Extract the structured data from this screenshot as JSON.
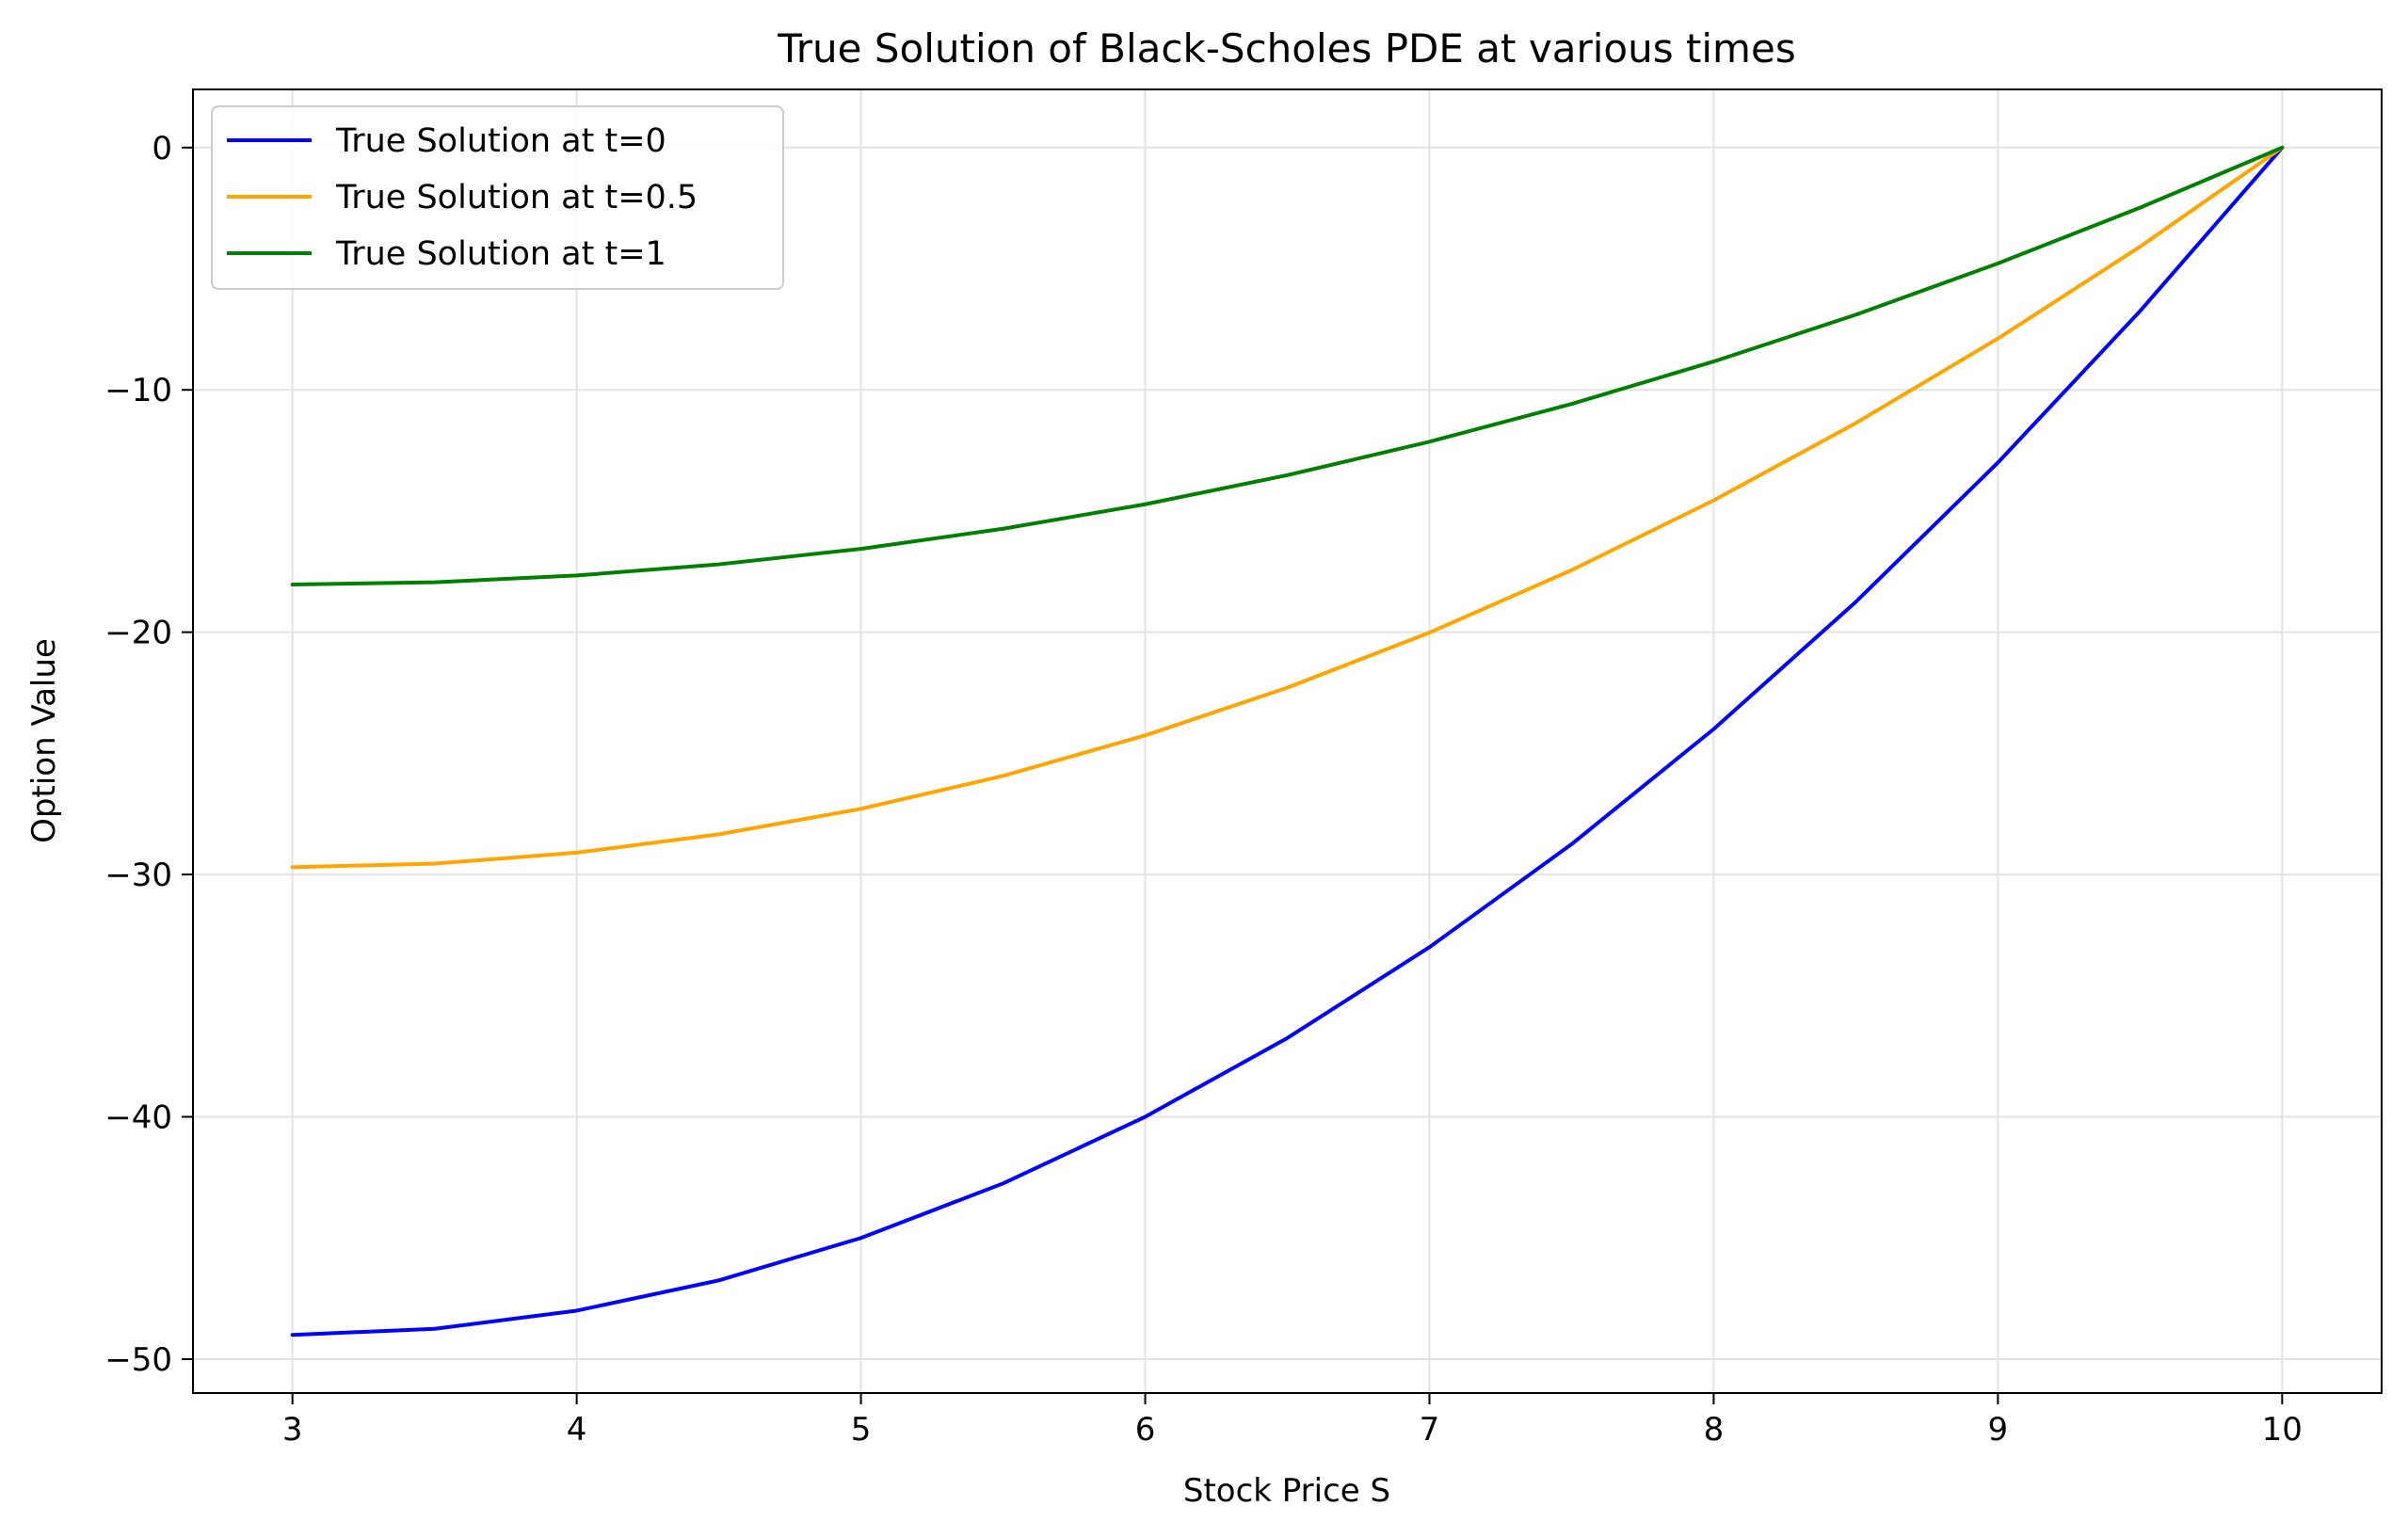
{
  "chart_data": {
    "type": "line",
    "title": "True Solution of Black-Scholes PDE at various times",
    "xlabel": "Stock Price S",
    "ylabel": "Option Value",
    "xlim": [
      2.65,
      10.35
    ],
    "ylim": [
      -51.4,
      2.4
    ],
    "xticks": [
      3,
      4,
      5,
      6,
      7,
      8,
      9,
      10
    ],
    "yticks": [
      0,
      -10,
      -20,
      -30,
      -40,
      -50
    ],
    "ytick_labels": [
      "0",
      "−10",
      "−20",
      "−30",
      "−40",
      "−50"
    ],
    "grid": true,
    "legend_position": "top-left",
    "series": [
      {
        "name": "True Solution at t=0",
        "color": "#0000ff",
        "x": [
          3,
          3.5,
          4,
          4.5,
          5,
          5.5,
          6,
          6.5,
          7,
          7.5,
          8,
          8.5,
          9,
          9.5,
          10
        ],
        "y": [
          -49,
          -48.75,
          -48,
          -46.75,
          -45,
          -42.75,
          -40,
          -36.75,
          -33,
          -28.75,
          -24,
          -18.75,
          -13,
          -6.75,
          0
        ]
      },
      {
        "name": "True Solution at t=0.5",
        "color": "#ffa500",
        "x": [
          3,
          3.5,
          4,
          4.5,
          5,
          5.5,
          6,
          6.5,
          7,
          7.5,
          8,
          8.5,
          9,
          9.5,
          10
        ],
        "y": [
          -29.7,
          -29.55,
          -29.1,
          -28.34,
          -27.29,
          -25.93,
          -24.26,
          -22.29,
          -20.02,
          -17.44,
          -14.56,
          -11.37,
          -7.88,
          -4.09,
          0
        ]
      },
      {
        "name": "True Solution at t=1",
        "color": "#008000",
        "x": [
          3,
          3.5,
          4,
          4.5,
          5,
          5.5,
          6,
          6.5,
          7,
          7.5,
          8,
          8.5,
          9,
          9.5,
          10
        ],
        "y": [
          -18.03,
          -17.94,
          -17.66,
          -17.2,
          -16.56,
          -15.73,
          -14.72,
          -13.52,
          -12.14,
          -10.58,
          -8.83,
          -6.9,
          -4.78,
          -2.48,
          0
        ]
      }
    ]
  }
}
